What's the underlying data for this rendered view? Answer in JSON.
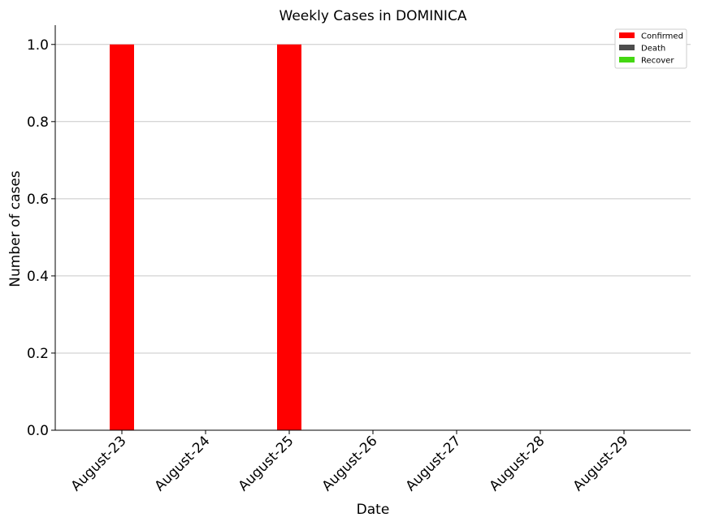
{
  "chart_data": {
    "type": "bar",
    "title": "Weekly Cases in DOMINICA",
    "xlabel": "Date",
    "ylabel": "Number of cases",
    "categories": [
      "August-23",
      "August-24",
      "August-25",
      "August-26",
      "August-27",
      "August-28",
      "August-29"
    ],
    "series": [
      {
        "name": "Confirmed",
        "color": "#ff0000",
        "values": [
          1,
          0,
          1,
          0,
          0,
          0,
          0
        ]
      },
      {
        "name": "Death",
        "color": "#4d4d4d",
        "values": [
          0,
          0,
          0,
          0,
          0,
          0,
          0
        ]
      },
      {
        "name": "Recover",
        "color": "#44d712",
        "values": [
          0,
          0,
          0,
          0,
          0,
          0,
          0
        ]
      }
    ],
    "ylim": [
      0,
      1.05
    ],
    "yticks": [
      "0.0",
      "0.2",
      "0.4",
      "0.6",
      "0.8",
      "1.0"
    ],
    "grid": "horizontal",
    "legend": "top-right"
  }
}
